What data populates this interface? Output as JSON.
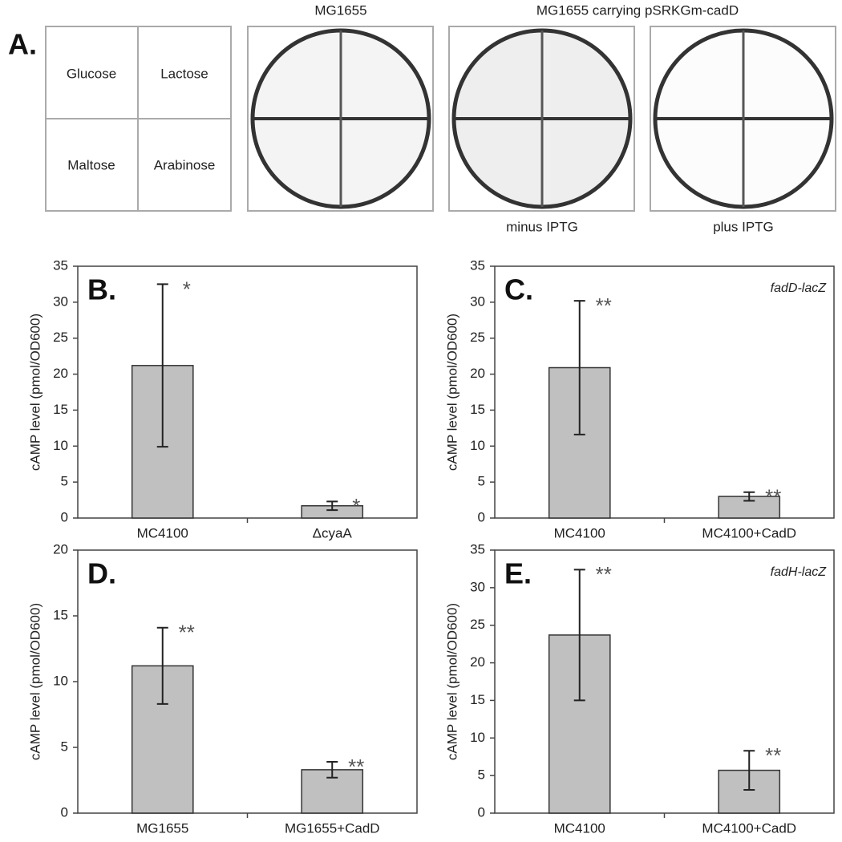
{
  "panel_a": {
    "label": "A.",
    "legend": [
      "Glucose",
      "Lactose",
      "Maltose",
      "Arabinose"
    ],
    "title_left": "MG1655",
    "title_right": "MG1655 carrying pSRKGm-cadD",
    "caption_middle": "minus IPTG",
    "caption_right": "plus IPTG"
  },
  "chart_data": [
    {
      "type": "bar",
      "panel": "B.",
      "ylabel": "cAMP level (pmol/OD600)",
      "categories": [
        "MC4100",
        "ΔcyaA"
      ],
      "values": [
        21.2,
        1.7
      ],
      "errors": [
        11.3,
        0.6
      ],
      "annotations": [
        "*",
        "*"
      ],
      "color": "#c0c0c0",
      "ylim": [
        0,
        35
      ],
      "yticks": [
        0,
        5,
        10,
        15,
        20,
        25,
        30,
        35
      ]
    },
    {
      "type": "bar",
      "panel": "C.",
      "ylabel": "cAMP level (pmol/OD600)",
      "note": "fadD-lacZ",
      "categories": [
        "MC4100",
        "MC4100+CadD"
      ],
      "values": [
        20.9,
        3.0
      ],
      "errors": [
        9.3,
        0.6
      ],
      "annotations": [
        "**",
        "**"
      ],
      "color": "#c0c0c0",
      "ylim": [
        0,
        35
      ],
      "yticks": [
        0,
        5,
        10,
        15,
        20,
        25,
        30,
        35
      ]
    },
    {
      "type": "bar",
      "panel": "D.",
      "ylabel": "cAMP level (pmol/OD600)",
      "categories": [
        "MG1655",
        "MG1655+CadD"
      ],
      "values": [
        11.2,
        3.3
      ],
      "errors": [
        2.9,
        0.6
      ],
      "annotations": [
        "**",
        "**"
      ],
      "color": "#c0c0c0",
      "ylim": [
        0,
        20
      ],
      "yticks": [
        0,
        5,
        10,
        15,
        20
      ]
    },
    {
      "type": "bar",
      "panel": "E.",
      "ylabel": "cAMP level (pmol/OD600)",
      "note": "fadH-lacZ",
      "categories": [
        "MC4100",
        "MC4100+CadD"
      ],
      "values": [
        23.7,
        5.7
      ],
      "errors": [
        8.7,
        2.6
      ],
      "annotations": [
        "**",
        "**"
      ],
      "color": "#c0c0c0",
      "ylim": [
        0,
        35
      ],
      "yticks": [
        0,
        5,
        10,
        15,
        20,
        25,
        30,
        35
      ]
    }
  ]
}
